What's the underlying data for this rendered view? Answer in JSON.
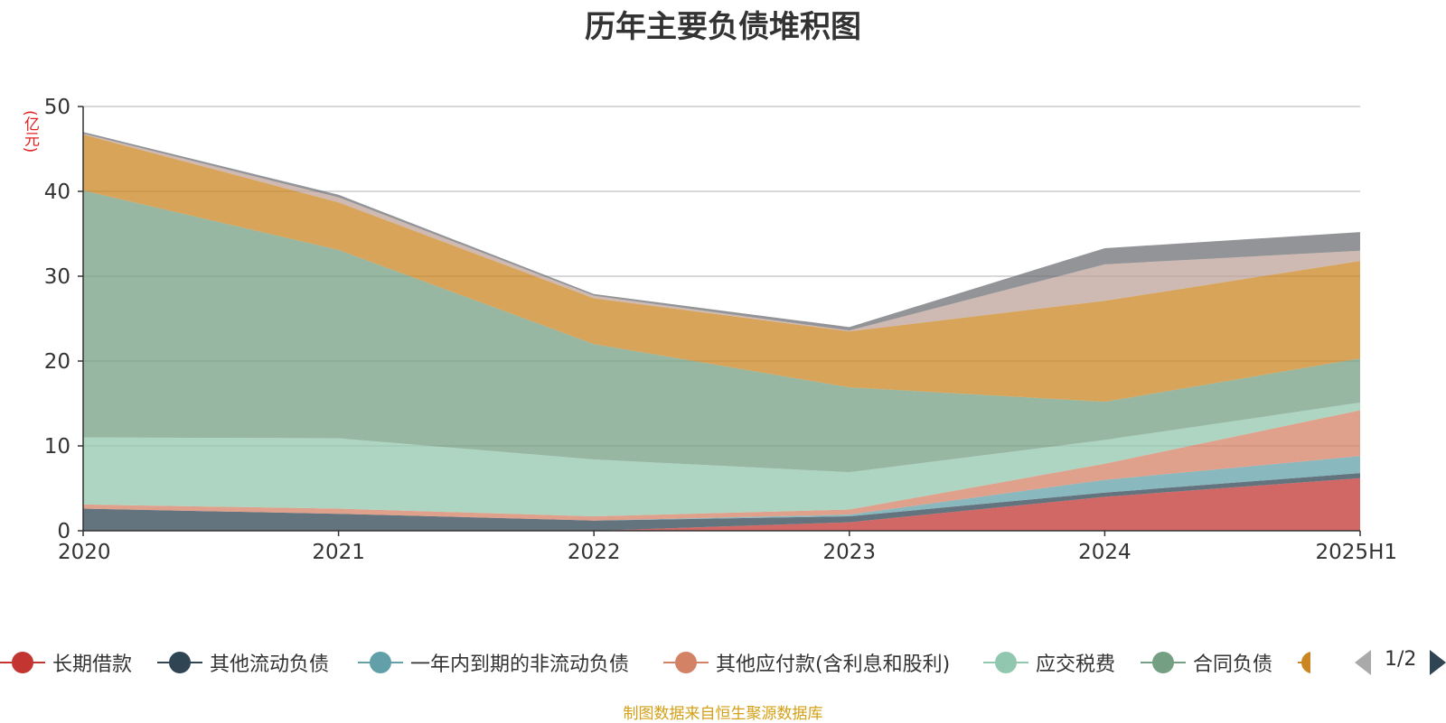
{
  "chart_data": {
    "type": "area",
    "stacked": true,
    "title": "历年主要负债堆积图",
    "ylabel": "(亿元)",
    "xlabel": "",
    "categories": [
      "2020",
      "2021",
      "2022",
      "2023",
      "2024",
      "2025H1"
    ],
    "ylim": [
      0,
      50
    ],
    "yticks": [
      0,
      10,
      20,
      30,
      40,
      50
    ],
    "grid": true,
    "legend_position": "bottom",
    "series": [
      {
        "name": "长期借款",
        "color": "#c23531",
        "values": [
          0,
          0,
          0,
          1.0,
          4.0,
          6.2
        ]
      },
      {
        "name": "其他流动负债",
        "color": "#2f4554",
        "values": [
          2.6,
          2.0,
          1.2,
          0.7,
          0.5,
          0.6
        ]
      },
      {
        "name": "一年内到期的非流动负债",
        "color": "#61a0a8",
        "values": [
          0,
          0,
          0,
          0.2,
          1.5,
          2.0
        ]
      },
      {
        "name": "其他应付款(含利息和股利)",
        "color": "#d48265",
        "values": [
          0.5,
          0.6,
          0.5,
          0.6,
          1.9,
          5.4
        ]
      },
      {
        "name": "应交税费",
        "color": "#91c7ae",
        "values": [
          7.9,
          8.3,
          6.7,
          4.4,
          2.8,
          0.9
        ]
      },
      {
        "name": "合同负债",
        "color": "#749f83",
        "values": [
          29.1,
          22.2,
          13.6,
          10.0,
          4.5,
          5.2
        ]
      },
      {
        "name": "",
        "color": "#ca8622",
        "values": [
          6.6,
          5.6,
          5.4,
          6.6,
          11.9,
          11.5
        ]
      },
      {
        "name": "",
        "color": "#bda29a",
        "values": [
          0.1,
          0.6,
          0.3,
          0.1,
          4.3,
          1.2
        ]
      },
      {
        "name": "",
        "color": "#6e7074",
        "values": [
          0.2,
          0.3,
          0.2,
          0.4,
          1.9,
          2.2
        ]
      }
    ]
  },
  "legend": {
    "page_indicator": "1/2",
    "partial_item_color": "#ca8622"
  },
  "source_note": "制图数据来自恒生聚源数据库"
}
